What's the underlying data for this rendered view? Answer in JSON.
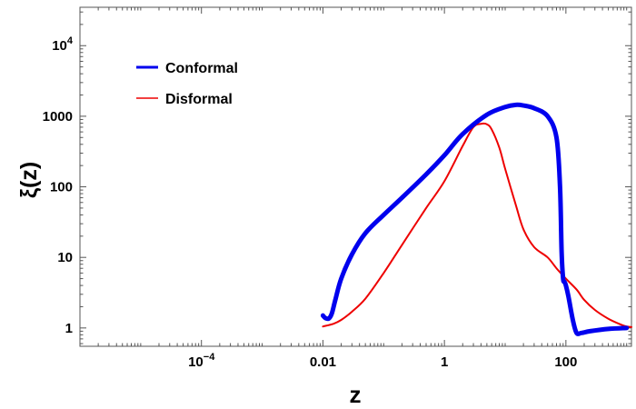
{
  "chart_data": {
    "type": "line",
    "title": "",
    "xlabel": "z",
    "ylabel": "ξ(z)",
    "x_scale": "log",
    "y_scale": "log",
    "xlim": [
      1e-06,
      1200
    ],
    "ylim": [
      0.55,
      35000
    ],
    "x_ticks": [
      {
        "value": 0.0001,
        "label": "10",
        "exp": "−4"
      },
      {
        "value": 0.01,
        "label": "0.01",
        "exp": ""
      },
      {
        "value": 1,
        "label": "1",
        "exp": ""
      },
      {
        "value": 100,
        "label": "100",
        "exp": ""
      }
    ],
    "y_ticks": [
      {
        "value": 1,
        "label": "1",
        "exp": ""
      },
      {
        "value": 10,
        "label": "10",
        "exp": ""
      },
      {
        "value": 100,
        "label": "100",
        "exp": ""
      },
      {
        "value": 1000,
        "label": "1000",
        "exp": ""
      },
      {
        "value": 10000,
        "label": "10",
        "exp": "4"
      }
    ],
    "legend_position": "top-left",
    "series": [
      {
        "name": "Conformal",
        "color": "#0000ee",
        "stroke_width": 5,
        "x": [
          0.01,
          0.011,
          0.0125,
          0.014,
          0.016,
          0.02,
          0.03,
          0.05,
          0.1,
          0.2,
          0.5,
          1,
          2,
          5,
          10,
          15,
          20,
          30,
          50,
          70,
          80,
          85,
          90,
          95,
          100,
          110,
          130,
          150,
          180,
          250,
          500,
          1000
        ],
        "y": [
          1.5,
          1.38,
          1.36,
          1.6,
          2.5,
          5,
          11,
          22,
          40,
          70,
          150,
          280,
          560,
          1050,
          1350,
          1450,
          1420,
          1300,
          1000,
          500,
          100,
          12,
          5,
          4.5,
          4,
          2.8,
          1.3,
          0.85,
          0.85,
          0.9,
          0.97,
          1.0
        ]
      },
      {
        "name": "Disformal",
        "color": "#ee0000",
        "stroke_width": 2,
        "x": [
          0.01,
          0.015,
          0.02,
          0.03,
          0.05,
          0.1,
          0.2,
          0.5,
          1,
          2,
          3,
          4,
          5,
          6,
          8,
          10,
          15,
          20,
          30,
          50,
          70,
          100,
          150,
          200,
          300,
          500,
          800,
          1000,
          1200
        ],
        "y": [
          1.05,
          1.15,
          1.3,
          1.7,
          2.6,
          6,
          15,
          50,
          120,
          380,
          700,
          780,
          770,
          650,
          360,
          180,
          55,
          25,
          14,
          10,
          7,
          5,
          3.5,
          2.5,
          1.8,
          1.35,
          1.12,
          1.05,
          1.03
        ]
      }
    ]
  }
}
